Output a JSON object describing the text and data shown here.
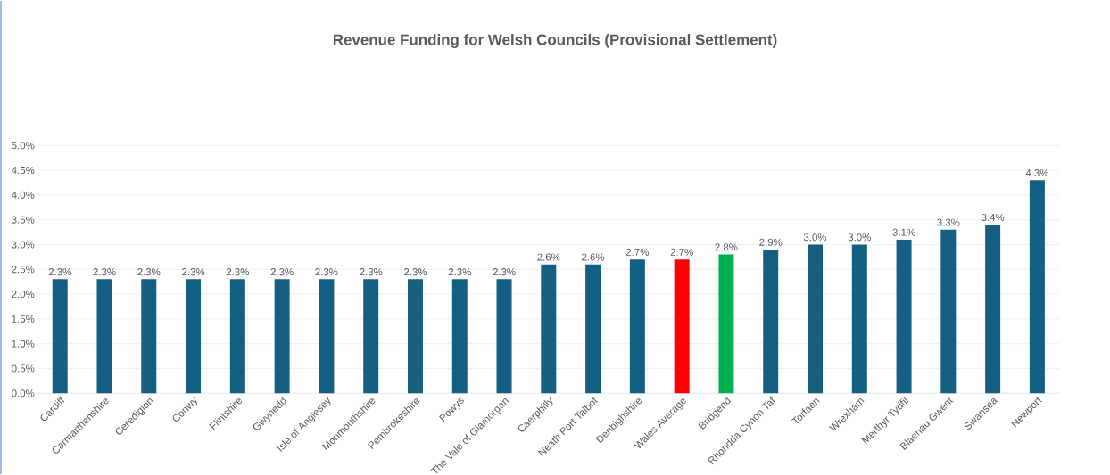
{
  "chart_data": {
    "type": "bar",
    "title": "Revenue Funding for Welsh Councils (Provisional Settlement)",
    "categories": [
      "Cardiff",
      "Carmarthenshire",
      "Ceredigion",
      "Conwy",
      "Flintshire",
      "Gwynedd",
      "Isle of Anglesey",
      "Monmouthshire",
      "Pembrokeshire",
      "Powys",
      "The Vale of Glamorgan",
      "Caerphilly",
      "Neath Port Talbot",
      "Denbighshire",
      "Wales Average",
      "Bridgend",
      "Rhondda Cynon Taf",
      "Torfaen",
      "Wrexham",
      "Merthyr Tydfil",
      "Blaenau Gwent",
      "Swansea",
      "Newport"
    ],
    "values": [
      2.3,
      2.3,
      2.3,
      2.3,
      2.3,
      2.3,
      2.3,
      2.3,
      2.3,
      2.3,
      2.3,
      2.6,
      2.6,
      2.7,
      2.7,
      2.8,
      2.9,
      3.0,
      3.0,
      3.1,
      3.3,
      3.4,
      4.3
    ],
    "value_labels": [
      "2.3%",
      "2.3%",
      "2.3%",
      "2.3%",
      "2.3%",
      "2.3%",
      "2.3%",
      "2.3%",
      "2.3%",
      "2.3%",
      "2.3%",
      "2.6%",
      "2.6%",
      "2.7%",
      "2.7%",
      "2.8%",
      "2.9%",
      "3.0%",
      "3.0%",
      "3.1%",
      "3.3%",
      "3.4%",
      "4.3%"
    ],
    "colors": [
      "#156082",
      "#156082",
      "#156082",
      "#156082",
      "#156082",
      "#156082",
      "#156082",
      "#156082",
      "#156082",
      "#156082",
      "#156082",
      "#156082",
      "#156082",
      "#156082",
      "#ff0000",
      "#00b050",
      "#156082",
      "#156082",
      "#156082",
      "#156082",
      "#156082",
      "#156082",
      "#156082"
    ],
    "ylim": [
      0,
      5
    ],
    "yticks": [
      {
        "value": 0,
        "label": "0.0%"
      },
      {
        "value": 0.5,
        "label": "0.5%"
      },
      {
        "value": 1,
        "label": "1.0%"
      },
      {
        "value": 1.5,
        "label": "1.5%"
      },
      {
        "value": 2,
        "label": "2.0%"
      },
      {
        "value": 2.5,
        "label": "2.5%"
      },
      {
        "value": 3,
        "label": "3.0%"
      },
      {
        "value": 3.5,
        "label": "3.5%"
      },
      {
        "value": 4,
        "label": "4.0%"
      },
      {
        "value": 4.5,
        "label": "4.5%"
      },
      {
        "value": 5,
        "label": "5.0%"
      }
    ],
    "grid": "y"
  }
}
